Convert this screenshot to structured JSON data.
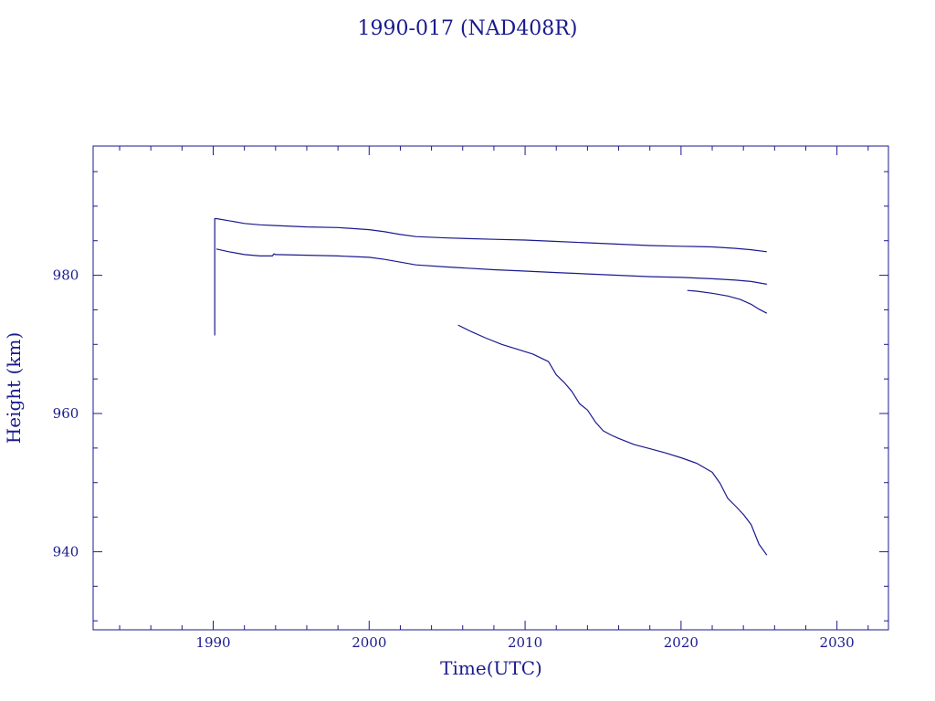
{
  "chart_data": {
    "type": "line",
    "title": "1990-017 (NAD408R)",
    "xlabel": "Time(UTC)",
    "ylabel": "Height (km)",
    "xlim": [
      1982.3,
      2033.3
    ],
    "ylim": [
      928.7,
      998.7
    ],
    "x_major_ticks": [
      1990,
      2000,
      2010,
      2020,
      2030
    ],
    "x_minor_step": 2,
    "y_major_ticks": [
      940,
      960,
      980
    ],
    "y_minor_step": 5,
    "x_tick_labels": [
      "1990",
      "2000",
      "2010",
      "2020",
      "2030"
    ],
    "y_tick_labels": [
      "940",
      "960",
      "980"
    ],
    "grid": false,
    "colors": {
      "line": "#1a1a8f",
      "axis": "#1a1a8f",
      "text": "#1a1a8f",
      "background": "#ffffff"
    },
    "series": [
      {
        "x": [
          1990.1,
          1990.1,
          1990.2,
          1991.0,
          1992.0,
          1993.0,
          1994.0,
          1996.0,
          1998.0,
          2000.0,
          2001.0,
          2002.0,
          2003.0,
          2005.0,
          2008.0,
          2010.0,
          2012.0,
          2014.0,
          2016.0,
          2018.0,
          2020.0,
          2022.0,
          2023.5,
          2024.5,
          2025.5
        ],
        "y": [
          971.3,
          988.2,
          988.2,
          987.9,
          987.5,
          987.3,
          987.2,
          987.0,
          986.9,
          986.6,
          986.3,
          985.9,
          985.6,
          985.4,
          985.2,
          985.1,
          984.9,
          984.7,
          984.5,
          984.3,
          984.2,
          984.1,
          983.9,
          983.7,
          983.4
        ]
      },
      {
        "x": [
          1990.2,
          1991.0,
          1992.0,
          1993.0,
          1993.8,
          1993.9,
          1994.0,
          1996.0,
          1998.0,
          2000.0,
          2001.0,
          2002.0,
          2003.0,
          2005.0,
          2008.0,
          2010.0,
          2012.0,
          2014.0,
          2016.0,
          2018.0,
          2020.0,
          2022.0,
          2023.5,
          2024.5,
          2025.5
        ],
        "y": [
          983.8,
          983.4,
          983.0,
          982.8,
          982.8,
          983.1,
          983.0,
          982.9,
          982.8,
          982.6,
          982.3,
          981.9,
          981.5,
          981.2,
          980.8,
          980.6,
          980.4,
          980.2,
          980.0,
          979.8,
          979.7,
          979.5,
          979.3,
          979.1,
          978.7
        ]
      },
      {
        "x": [
          2020.4,
          2021.0,
          2022.0,
          2023.0,
          2023.8,
          2024.5,
          2025.0,
          2025.5
        ],
        "y": [
          977.8,
          977.7,
          977.4,
          977.0,
          976.5,
          975.8,
          975.1,
          974.5
        ]
      },
      {
        "x": [
          2005.7,
          2006.5,
          2007.5,
          2008.5,
          2009.5,
          2010.5,
          2011.5,
          2012.0,
          2012.5,
          2013.0,
          2013.5,
          2014.0,
          2014.5,
          2015.0,
          2015.5,
          2016.0,
          2017.0,
          2018.0,
          2019.0,
          2020.0,
          2021.0,
          2022.0,
          2022.5,
          2023.0,
          2023.5,
          2024.0,
          2024.5,
          2025.0,
          2025.5
        ],
        "y": [
          972.8,
          971.9,
          970.9,
          970.0,
          969.3,
          968.6,
          967.5,
          965.6,
          964.5,
          963.2,
          961.4,
          960.5,
          958.8,
          957.5,
          956.9,
          956.4,
          955.5,
          954.9,
          954.3,
          953.6,
          952.8,
          951.5,
          949.9,
          947.7,
          946.6,
          945.4,
          943.9,
          941.1,
          939.5
        ]
      }
    ]
  }
}
